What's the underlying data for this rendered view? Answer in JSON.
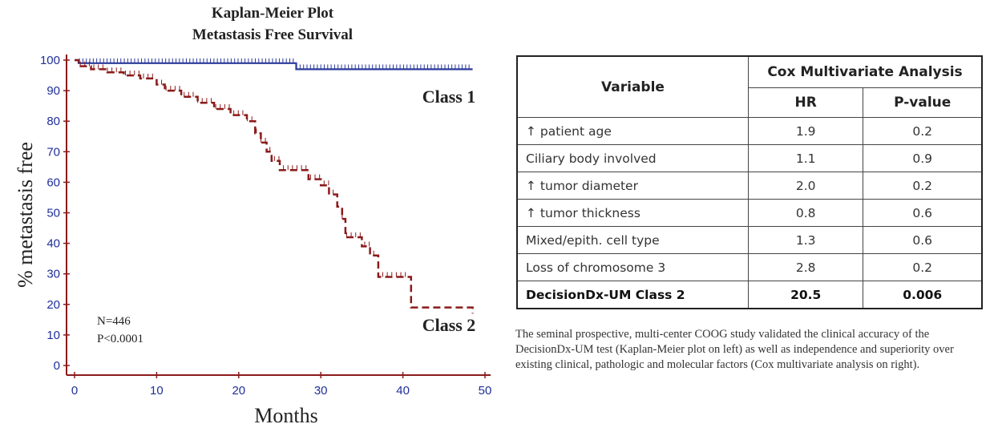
{
  "chart_data": {
    "type": "line",
    "title": [
      "Kaplan-Meier Plot",
      "Metastasis Free Survival"
    ],
    "xlabel": "Months",
    "ylabel": "% metastasis free",
    "xlim": [
      0,
      50
    ],
    "ylim": [
      0,
      100
    ],
    "xticks": [
      "0",
      "10",
      "20",
      "30",
      "40",
      "50"
    ],
    "yticks": [
      "0",
      "10",
      "20",
      "30",
      "40",
      "50",
      "60",
      "70",
      "80",
      "90",
      "100"
    ],
    "grid": false,
    "series": [
      {
        "name": "Class 1",
        "color": "#2b3a9c",
        "style": "solid",
        "x": [
          0,
          0.5,
          27,
          48.5
        ],
        "y": [
          100,
          99,
          97,
          97
        ]
      },
      {
        "name": "Class 2",
        "color": "#8b1a1a",
        "style": "dashed",
        "x": [
          0,
          0.5,
          2,
          4,
          6,
          8,
          10,
          11,
          13,
          15,
          17,
          19,
          21,
          22,
          22.7,
          23.4,
          24,
          25,
          27,
          28.5,
          30,
          31,
          32,
          32.6,
          33,
          35,
          36,
          37,
          41,
          48.5
        ],
        "y": [
          100,
          98,
          97,
          96,
          95,
          94,
          92,
          90,
          88,
          86,
          84,
          82,
          80,
          76,
          73,
          70,
          67,
          64,
          64,
          61,
          59,
          56,
          52,
          48,
          42,
          39,
          36,
          29,
          19,
          17
        ]
      }
    ],
    "annotations": [
      "N=446",
      "P<0.0001"
    ]
  },
  "table": {
    "header_variable": "Variable",
    "header_group": "Cox Multivariate Analysis",
    "header_hr": "HR",
    "header_p": "P-value",
    "rows": [
      {
        "variable": "↑ patient age",
        "hr": "1.9",
        "p": "0.2"
      },
      {
        "variable": "Ciliary body involved",
        "hr": "1.1",
        "p": "0.9"
      },
      {
        "variable": "↑ tumor diameter",
        "hr": "2.0",
        "p": "0.2"
      },
      {
        "variable": "↑ tumor thickness",
        "hr": "0.8",
        "p": "0.6"
      },
      {
        "variable": "Mixed/epith. cell type",
        "hr": "1.3",
        "p": "0.6"
      },
      {
        "variable": "Loss of chromosome 3",
        "hr": "2.8",
        "p": "0.2"
      },
      {
        "variable": "DecisionDx-UM Class 2",
        "hr": "20.5",
        "p": "0.006"
      }
    ]
  },
  "caption": "The seminal prospective, multi-center COOG study validated the clinical accuracy of the DecisionDx-UM test (Kaplan-Meier plot on left) as well as independence and superiority over existing clinical, pathologic and molecular factors (Cox multivariate analysis on right)."
}
